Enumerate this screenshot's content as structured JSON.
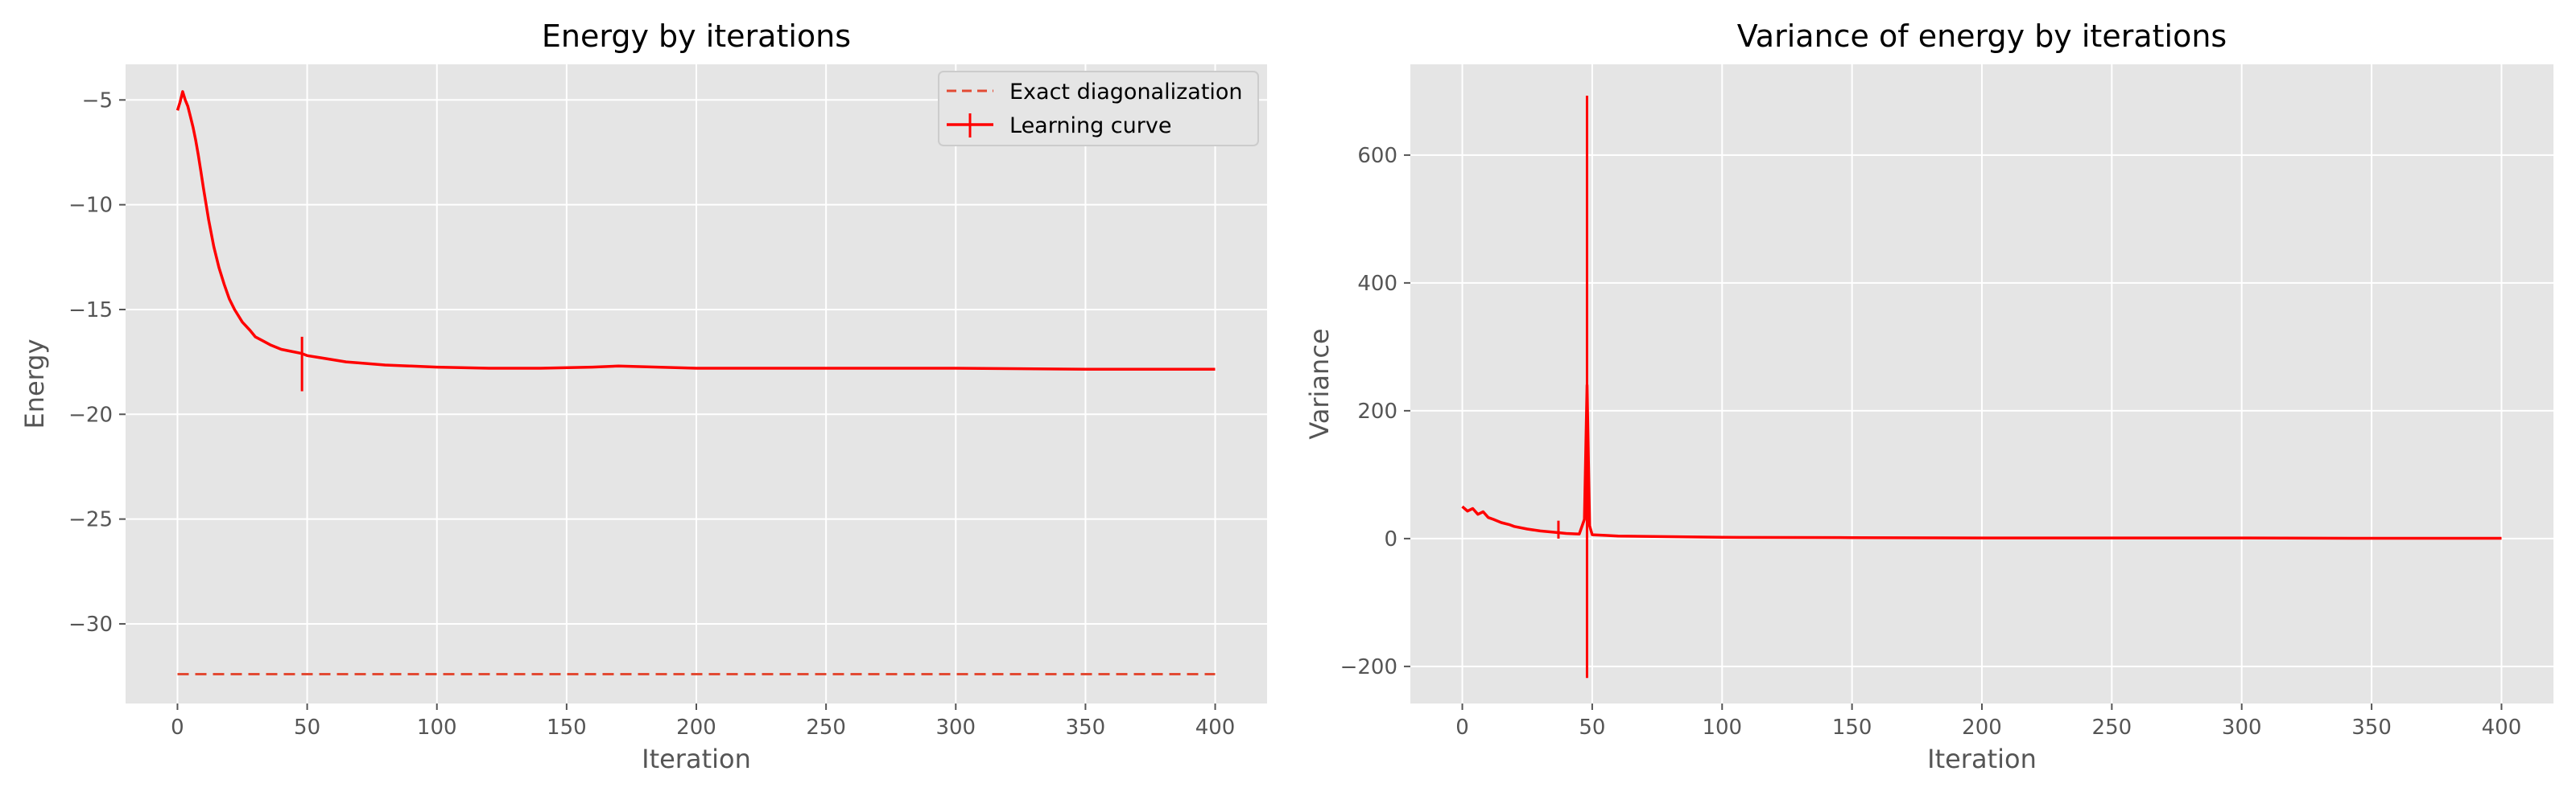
{
  "colors": {
    "panel_background": "#E5E5E5",
    "grid": "#FFFFFF",
    "learning_curve": "#FF0000",
    "exact_line": "#E24A33",
    "tick_text": "#555555",
    "legend_frame": "#CCCCCC"
  },
  "chart_data": [
    {
      "type": "line",
      "title": "Energy by iterations",
      "xlabel": "Iteration",
      "ylabel": "Energy",
      "xlim": [
        -20,
        420
      ],
      "ylim": [
        -33.8,
        -3.3
      ],
      "xticks": [
        0,
        50,
        100,
        150,
        200,
        250,
        300,
        350,
        400
      ],
      "yticks": [
        -5,
        -10,
        -15,
        -20,
        -25,
        -30
      ],
      "xtick_labels": [
        "0",
        "50",
        "100",
        "150",
        "200",
        "250",
        "300",
        "350",
        "400"
      ],
      "ytick_labels": [
        "−5",
        "−10",
        "−15",
        "−20",
        "−25",
        "−30"
      ],
      "grid": true,
      "legend": {
        "position": "upper right",
        "entries": [
          "Exact diagonalization",
          "Learning curve"
        ]
      },
      "series": [
        {
          "name": "Exact diagonalization",
          "style": "dashed",
          "x": [
            0,
            400
          ],
          "y": [
            -32.4,
            -32.4
          ]
        },
        {
          "name": "Learning curve",
          "style": "solid-with-errorbars",
          "x": [
            0,
            1,
            2,
            3,
            4,
            5,
            6,
            7,
            8,
            9,
            10,
            12,
            14,
            16,
            18,
            20,
            22,
            25,
            28,
            30,
            33,
            36,
            40,
            44,
            48,
            50,
            55,
            60,
            65,
            70,
            80,
            90,
            100,
            120,
            140,
            160,
            170,
            200,
            250,
            300,
            350,
            400
          ],
          "y": [
            -5.5,
            -5.1,
            -4.6,
            -5.0,
            -5.3,
            -5.8,
            -6.3,
            -6.9,
            -7.6,
            -8.4,
            -9.2,
            -10.7,
            -12.0,
            -13.0,
            -13.8,
            -14.5,
            -15.0,
            -15.6,
            -16.0,
            -16.3,
            -16.5,
            -16.7,
            -16.9,
            -17.0,
            -17.1,
            -17.2,
            -17.3,
            -17.4,
            -17.5,
            -17.55,
            -17.65,
            -17.7,
            -17.75,
            -17.8,
            -17.8,
            -17.75,
            -17.7,
            -17.8,
            -17.8,
            -17.8,
            -17.85,
            -17.85
          ],
          "errorbars": [
            {
              "x": 48,
              "low": -18.9,
              "high": -16.3
            }
          ]
        }
      ]
    },
    {
      "type": "line",
      "title": "Variance of energy by iterations",
      "xlabel": "Iteration",
      "ylabel": "Variance",
      "xlim": [
        -20,
        420
      ],
      "ylim": [
        -258,
        742
      ],
      "xticks": [
        0,
        50,
        100,
        150,
        200,
        250,
        300,
        350,
        400
      ],
      "yticks": [
        600,
        400,
        200,
        0,
        -200
      ],
      "xtick_labels": [
        "0",
        "50",
        "100",
        "150",
        "200",
        "250",
        "300",
        "350",
        "400"
      ],
      "ytick_labels": [
        "600",
        "400",
        "200",
        "0",
        "−200"
      ],
      "grid": true,
      "series": [
        {
          "style": "solid-with-errorbars",
          "x": [
            0,
            2,
            4,
            6,
            8,
            10,
            12,
            15,
            18,
            20,
            25,
            30,
            35,
            40,
            45,
            47,
            48,
            49,
            50,
            55,
            60,
            70,
            80,
            100,
            150,
            200,
            250,
            300,
            350,
            400
          ],
          "y": [
            50,
            43,
            47,
            38,
            42,
            33,
            30,
            25,
            22,
            19,
            15,
            12,
            10,
            8,
            7,
            30,
            240,
            20,
            6,
            5,
            4,
            3.5,
            3,
            2,
            1.5,
            1,
            1,
            1,
            0.5,
            0.5
          ],
          "errorbars": [
            {
              "x": 37,
              "low": 0,
              "high": 28
            },
            {
              "x": 48,
              "low": -218,
              "high": 693
            }
          ]
        }
      ]
    }
  ]
}
